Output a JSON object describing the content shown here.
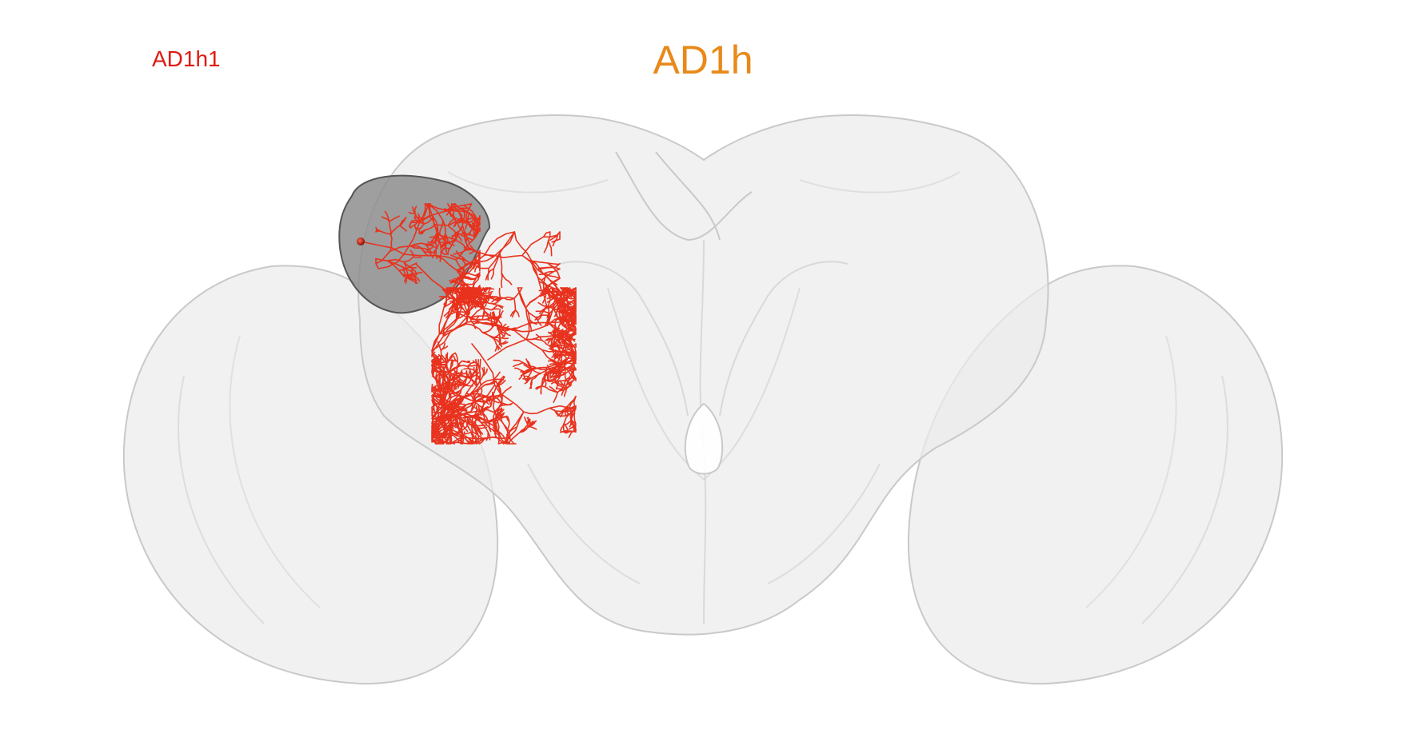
{
  "title": "AD1h",
  "legend_label": "AD1h1",
  "colors": {
    "title": "#E8891A",
    "legend_label": "#E0190E",
    "neuron": "#E8321E",
    "brain_fill": "#EBEBEB",
    "brain_edge": "#C9C9C9",
    "neuropil_fill": "#8E8E8E"
  }
}
